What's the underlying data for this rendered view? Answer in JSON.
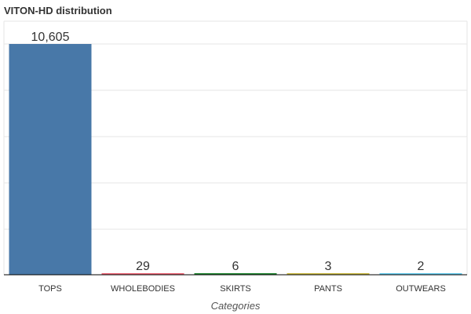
{
  "chart_data": {
    "type": "bar",
    "title": "VITON-HD distribution",
    "xlabel": "Categories",
    "ylabel": "",
    "categories": [
      "TOPS",
      "WHOLEBODIES",
      "SKIRTS",
      "PANTS",
      "OUTWEARS"
    ],
    "values": [
      10605,
      29,
      6,
      3,
      2
    ],
    "data_labels": [
      "10,605",
      "29",
      "6",
      "3",
      "2"
    ],
    "colors": [
      "#4878a8",
      "#ee6677",
      "#228833",
      "#ccbb44",
      "#66ccee"
    ],
    "grid": true,
    "legend": "none"
  }
}
